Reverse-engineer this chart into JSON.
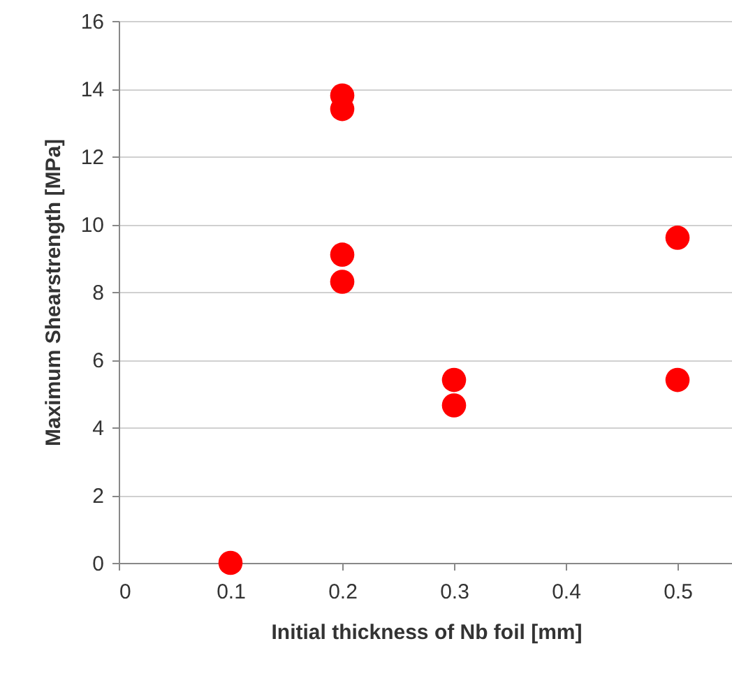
{
  "chart_data": {
    "type": "scatter",
    "xlabel": "Initial thickness of Nb foil [mm]",
    "ylabel": "Maximum Shearstrength [MPa]",
    "x": [
      0.1,
      0.2,
      0.2,
      0.2,
      0.2,
      0.3,
      0.3,
      0.5,
      0.5
    ],
    "series": [
      {
        "color": "#ff0000",
        "values": [
          0,
          13.8,
          13.4,
          9.1,
          8.3,
          5.4,
          4.65,
          9.6,
          5.4
        ]
      }
    ],
    "xlim": [
      0,
      0.55
    ],
    "xticks": [
      0,
      0.1,
      0.2,
      0.3,
      0.4,
      0.5
    ],
    "ylim": [
      0,
      16
    ],
    "yticks": [
      0,
      2,
      4,
      6,
      8,
      10,
      12,
      14,
      16
    ],
    "grid": "y",
    "marker": "circle"
  }
}
